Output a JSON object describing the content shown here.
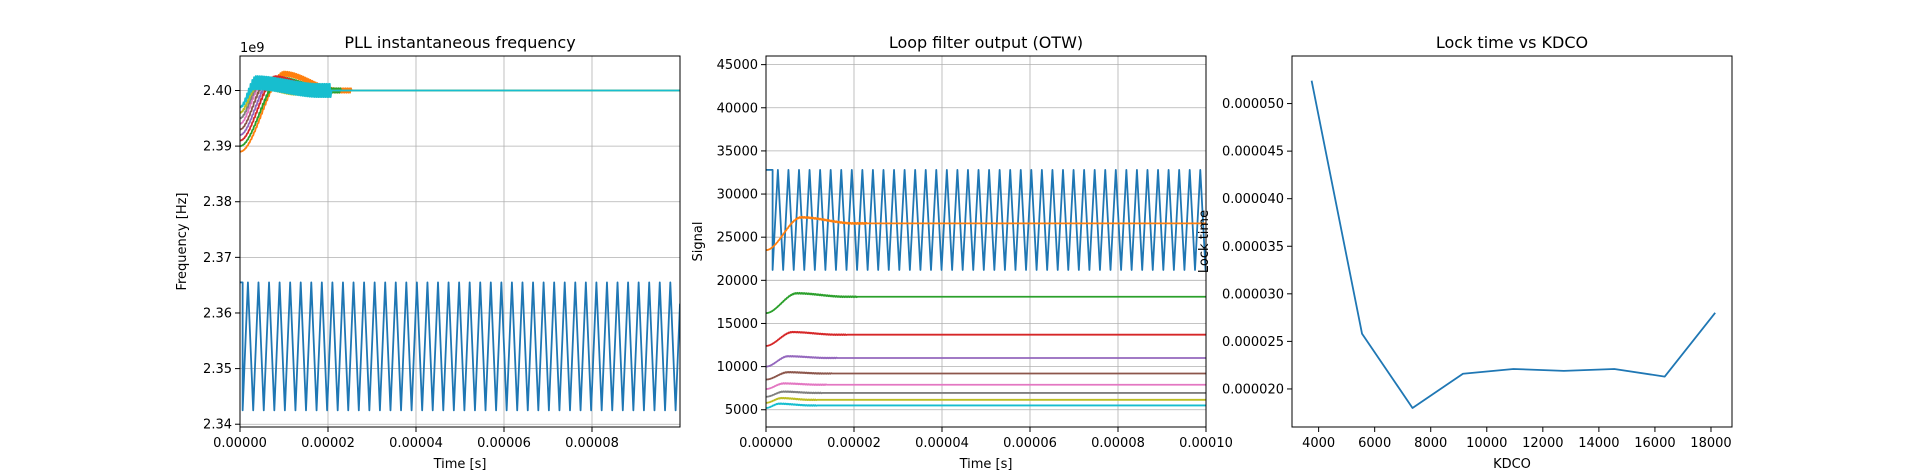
{
  "chart_data": [
    {
      "type": "line",
      "title": "PLL instantaneous frequency",
      "xlabel": "Time [s]",
      "ylabel": "Frequency [Hz]",
      "y_offset_text": "1e9",
      "xlim": [
        0,
        0.0001
      ],
      "ylim": [
        2.3395,
        2.4062
      ],
      "y_scale_factor": 1000000000,
      "grid": true,
      "x_ticks": [
        0,
        2e-05,
        4e-05,
        6e-05,
        8e-05
      ],
      "x_tick_labels": [
        "0.00000",
        "0.00002",
        "0.00004",
        "0.00006",
        "0.00008"
      ],
      "y_ticks": [
        2.34,
        2.35,
        2.36,
        2.37,
        2.38,
        2.39,
        2.4
      ],
      "y_tick_labels": [
        "2.34",
        "2.35",
        "2.36",
        "2.37",
        "2.38",
        "2.39",
        "2.40"
      ],
      "series": [
        {
          "color": "#1f77b4",
          "shape": "sawtooth",
          "initial": 2.3655,
          "x_switch": 6e-07,
          "low": 2.3425,
          "high": 2.3655,
          "period": 2.4e-06,
          "x_end": 0.0001
        },
        {
          "color": "#ff7f0e",
          "shape": "settle",
          "start": 2.389,
          "peak": 2.403,
          "x_peak": 1e-05,
          "final": 2.4,
          "x_settle": 2.2e-05,
          "ripple": 0.0004,
          "x_end": 0.0001
        },
        {
          "color": "#2ca02c",
          "shape": "settle",
          "start": 2.39,
          "peak": 2.402,
          "x_peak": 9e-06,
          "final": 2.4,
          "x_settle": 2e-05,
          "ripple": 0.0004,
          "x_end": 0.0001
        },
        {
          "color": "#d62728",
          "shape": "settle",
          "start": 2.391,
          "peak": 2.4022,
          "x_peak": 8e-06,
          "final": 2.4,
          "x_settle": 1.8e-05,
          "ripple": 0.0004,
          "x_end": 0.0001
        },
        {
          "color": "#9467bd",
          "shape": "settle",
          "start": 2.392,
          "peak": 2.4018,
          "x_peak": 7e-06,
          "final": 2.4,
          "x_settle": 1.6e-05,
          "ripple": 0.0004,
          "x_end": 0.0001
        },
        {
          "color": "#8c564b",
          "shape": "settle",
          "start": 2.393,
          "peak": 2.4016,
          "x_peak": 6e-06,
          "final": 2.4,
          "x_settle": 1.5e-05,
          "ripple": 0.0004,
          "x_end": 0.0001
        },
        {
          "color": "#e377c2",
          "shape": "settle",
          "start": 2.394,
          "peak": 2.4014,
          "x_peak": 5e-06,
          "final": 2.4,
          "x_settle": 1.4e-05,
          "ripple": 0.0005,
          "x_end": 0.0001
        },
        {
          "color": "#7f7f7f",
          "shape": "settle",
          "start": 2.395,
          "peak": 2.4012,
          "x_peak": 4.5e-06,
          "final": 2.4,
          "x_settle": 1.3e-05,
          "ripple": 0.0006,
          "x_end": 0.0001
        },
        {
          "color": "#bcbd22",
          "shape": "settle",
          "start": 2.396,
          "peak": 2.4012,
          "x_peak": 4e-06,
          "final": 2.4,
          "x_settle": 1.3e-05,
          "ripple": 0.0008,
          "x_end": 0.0001
        },
        {
          "color": "#17becf",
          "shape": "settle",
          "start": 2.397,
          "peak": 2.4014,
          "x_peak": 3.5e-06,
          "final": 2.4,
          "x_settle": 1.8e-05,
          "ripple": 0.0012,
          "x_end": 0.0001
        }
      ]
    },
    {
      "type": "line",
      "title": "Loop filter output (OTW)",
      "xlabel": "Time [s]",
      "ylabel": "Signal",
      "xlim": [
        0,
        0.0001
      ],
      "ylim": [
        3000,
        46000
      ],
      "grid": true,
      "x_ticks": [
        0,
        2e-05,
        4e-05,
        6e-05,
        8e-05,
        0.0001
      ],
      "x_tick_labels": [
        "0.00000",
        "0.00002",
        "0.00004",
        "0.00006",
        "0.00008",
        "0.00010"
      ],
      "y_ticks": [
        5000,
        10000,
        15000,
        20000,
        25000,
        30000,
        35000,
        40000,
        45000
      ],
      "y_tick_labels": [
        "5000",
        "10000",
        "15000",
        "20000",
        "25000",
        "30000",
        "35000",
        "40000",
        "45000"
      ],
      "series": [
        {
          "color": "#1f77b4",
          "shape": "sawtooth",
          "initial": 32800,
          "x_switch": 1.5e-06,
          "low": 21200,
          "high": 32800,
          "period": 2.4e-06,
          "x_end": 0.0001
        },
        {
          "color": "#ff7f0e",
          "shape": "settle",
          "start": 23500,
          "peak": 27300,
          "x_peak": 8e-06,
          "final": 26600,
          "x_settle": 2e-05,
          "ripple": 60,
          "x_end": 0.0001
        },
        {
          "color": "#2ca02c",
          "shape": "settle",
          "start": 16200,
          "peak": 18500,
          "x_peak": 7e-06,
          "final": 18100,
          "x_settle": 1.8e-05,
          "ripple": 50,
          "x_end": 0.0001
        },
        {
          "color": "#d62728",
          "shape": "settle",
          "start": 12400,
          "peak": 14000,
          "x_peak": 6e-06,
          "final": 13700,
          "x_settle": 1.6e-05,
          "ripple": 40,
          "x_end": 0.0001
        },
        {
          "color": "#9467bd",
          "shape": "settle",
          "start": 10000,
          "peak": 11200,
          "x_peak": 5e-06,
          "final": 11000,
          "x_settle": 1.4e-05,
          "ripple": 40,
          "x_end": 0.0001
        },
        {
          "color": "#8c564b",
          "shape": "settle",
          "start": 8500,
          "peak": 9350,
          "x_peak": 5e-06,
          "final": 9200,
          "x_settle": 1.3e-05,
          "ripple": 40,
          "x_end": 0.0001
        },
        {
          "color": "#e377c2",
          "shape": "settle",
          "start": 7400,
          "peak": 8050,
          "x_peak": 4e-06,
          "final": 7900,
          "x_settle": 1.2e-05,
          "ripple": 40,
          "x_end": 0.0001
        },
        {
          "color": "#7f7f7f",
          "shape": "settle",
          "start": 6500,
          "peak": 7100,
          "x_peak": 4e-06,
          "final": 6950,
          "x_settle": 1.1e-05,
          "ripple": 40,
          "x_end": 0.0001
        },
        {
          "color": "#bcbd22",
          "shape": "settle",
          "start": 5800,
          "peak": 6350,
          "x_peak": 3.5e-06,
          "final": 6150,
          "x_settle": 1e-05,
          "ripple": 40,
          "x_end": 0.0001
        },
        {
          "color": "#17becf",
          "shape": "settle",
          "start": 5200,
          "peak": 5700,
          "x_peak": 3e-06,
          "final": 5500,
          "x_settle": 1e-05,
          "ripple": 40,
          "x_end": 0.0001
        }
      ]
    },
    {
      "type": "line",
      "title": "Lock time vs KDCO",
      "xlabel": "KDCO",
      "ylabel": "Lock time",
      "xlim": [
        3050,
        18750
      ],
      "ylim": [
        1.6e-05,
        5.5e-05
      ],
      "grid": false,
      "x_ticks": [
        4000,
        6000,
        8000,
        10000,
        12000,
        14000,
        16000,
        18000
      ],
      "x_tick_labels": [
        "4000",
        "6000",
        "8000",
        "10000",
        "12000",
        "14000",
        "16000",
        "18000"
      ],
      "y_ticks": [
        2e-05,
        2.5e-05,
        3e-05,
        3.5e-05,
        4e-05,
        4.5e-05,
        5e-05
      ],
      "y_tick_labels": [
        "0.000020",
        "0.000025",
        "0.000030",
        "0.000035",
        "0.000040",
        "0.000045",
        "0.000050"
      ],
      "series": [
        {
          "color": "#1f77b4",
          "shape": "points",
          "x": [
            3750,
            5550,
            7350,
            9150,
            10950,
            12750,
            14550,
            16350,
            18150
          ],
          "y": [
            5.24e-05,
            2.58e-05,
            1.8e-05,
            2.16e-05,
            2.21e-05,
            2.19e-05,
            2.21e-05,
            2.13e-05,
            2.8e-05
          ]
        }
      ]
    }
  ]
}
